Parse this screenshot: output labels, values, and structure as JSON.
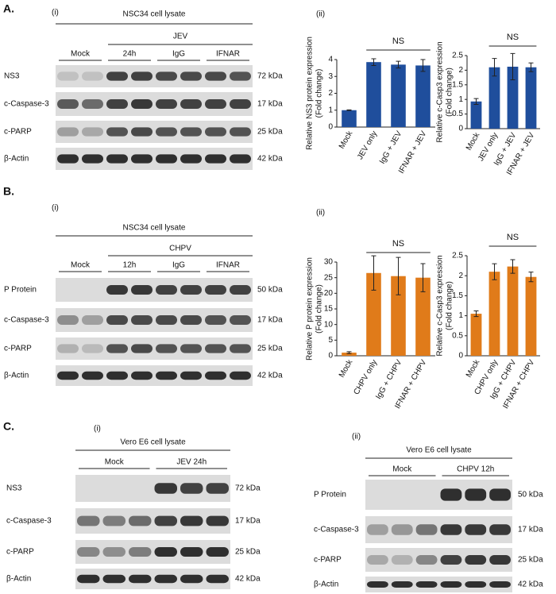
{
  "panels": [
    {
      "label": "A.",
      "blot": {
        "sub": "(i)",
        "lysate": "NSC34 cell lysate",
        "group": "JEV",
        "lanes": [
          "Mock",
          "24h",
          "IgG",
          "IFNAR"
        ],
        "rows": [
          {
            "name": "NS3",
            "size": "72 kDa"
          },
          {
            "name": "c-Caspase-3",
            "size": "17 kDa"
          },
          {
            "name": "c-PARP",
            "size": "25 kDa"
          },
          {
            "name": "β-Actin",
            "size": "42 kDa"
          }
        ]
      },
      "chart_sub": "(ii)"
    },
    {
      "label": "B.",
      "blot": {
        "sub": "(i)",
        "lysate": "NSC34 cell lysate",
        "group": "CHPV",
        "lanes": [
          "Mock",
          "12h",
          "IgG",
          "IFNAR"
        ],
        "rows": [
          {
            "name": "P  Protein",
            "size": "50 kDa"
          },
          {
            "name": "c-Caspase-3",
            "size": "17 kDa"
          },
          {
            "name": "c-PARP",
            "size": "25 kDa"
          },
          {
            "name": "β-Actin",
            "size": "42 kDa"
          }
        ]
      },
      "chart_sub": "(ii)"
    },
    {
      "label": "C.",
      "blots": [
        {
          "sub": "(i)",
          "lysate": "Vero E6 cell lysate",
          "lanes": [
            "Mock",
            "JEV 24h"
          ],
          "rows": [
            {
              "name": "NS3",
              "size": "72 kDa"
            },
            {
              "name": "c-Caspase-3",
              "size": "17 kDa"
            },
            {
              "name": "c-PARP",
              "size": "25 kDa"
            },
            {
              "name": "β-Actin",
              "size": "42 kDa"
            }
          ]
        },
        {
          "sub": "(ii)",
          "lysate": "Vero E6 cell lysate",
          "lanes": [
            "Mock",
            "CHPV 12h"
          ],
          "rows": [
            {
              "name": "P  Protein",
              "size": "50 kDa"
            },
            {
              "name": "c-Caspase-3",
              "size": "17 kDa"
            },
            {
              "name": "c-PARP",
              "size": "25 kDa"
            },
            {
              "name": "β-Actin",
              "size": "42 kDa"
            }
          ]
        }
      ]
    }
  ],
  "chart_data": [
    {
      "type": "bar",
      "ylabel": [
        "Relative NS3 protein expression",
        "(Fold change)"
      ],
      "categories": [
        "Mock",
        "JEV only",
        "IgG + JEV",
        "IFNAR + JEV"
      ],
      "values": [
        1.0,
        3.85,
        3.7,
        3.65
      ],
      "errors": [
        0.02,
        0.2,
        0.2,
        0.35
      ],
      "color": "#1f4e9c",
      "ylim": [
        0,
        4
      ],
      "yticks": [
        0,
        1,
        2,
        3,
        4
      ],
      "annotation": "NS"
    },
    {
      "type": "bar",
      "ylabel": [
        "Relative c-Casp3 expression",
        "(Fold change)"
      ],
      "categories": [
        "Mock",
        "JEV only",
        "IgG + JEV",
        "IFNAR + JEV"
      ],
      "values": [
        0.93,
        2.1,
        2.12,
        2.1
      ],
      "errors": [
        0.1,
        0.3,
        0.45,
        0.15
      ],
      "color": "#1f4e9c",
      "ylim": [
        0,
        2.5
      ],
      "yticks": [
        0,
        0.5,
        1,
        1.5,
        2,
        2.5
      ],
      "annotation": "NS"
    },
    {
      "type": "bar",
      "ylabel": [
        "Relative P protein expression",
        "(Fold change)"
      ],
      "categories": [
        "Mock",
        "CHPV only",
        "IgG + CHPV",
        "IFNAR + CHPV"
      ],
      "values": [
        1,
        26.5,
        25.5,
        25
      ],
      "errors": [
        0.3,
        5.5,
        6,
        4.5
      ],
      "color": "#e07b1a",
      "ylim": [
        0,
        30
      ],
      "yticks": [
        0,
        5,
        10,
        15,
        20,
        25,
        30
      ],
      "annotation": "NS"
    },
    {
      "type": "bar",
      "ylabel": [
        "Relative c-Casp3 expression",
        "(Fold change)"
      ],
      "categories": [
        "Mock",
        "CHPV only",
        "IgG + CHPV",
        "IFNAR + CHPV"
      ],
      "values": [
        1.05,
        2.1,
        2.23,
        1.97
      ],
      "errors": [
        0.07,
        0.2,
        0.17,
        0.12
      ],
      "color": "#e07b1a",
      "ylim": [
        0,
        2.5
      ],
      "yticks": [
        0,
        0.5,
        1,
        1.5,
        2,
        2.5
      ],
      "annotation": "NS"
    }
  ]
}
